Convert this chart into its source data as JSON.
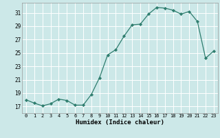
{
  "x": [
    0,
    1,
    2,
    3,
    4,
    5,
    6,
    7,
    8,
    9,
    10,
    11,
    12,
    13,
    14,
    15,
    16,
    17,
    18,
    19,
    20,
    21,
    22,
    23
  ],
  "y": [
    18.0,
    17.5,
    17.1,
    17.4,
    18.1,
    17.9,
    17.2,
    17.2,
    18.8,
    21.3,
    24.7,
    25.5,
    27.5,
    29.2,
    29.3,
    30.8,
    31.8,
    31.7,
    31.4,
    30.8,
    31.2,
    29.7,
    24.2,
    25.3
  ],
  "line_color": "#2e7d6e",
  "marker": "D",
  "marker_size": 2.2,
  "bg_color": "#cce8e8",
  "grid_color": "#ffffff",
  "xlabel": "Humidex (Indice chaleur)",
  "ylabel_ticks": [
    17,
    19,
    21,
    23,
    25,
    27,
    29,
    31
  ],
  "xtick_labels": [
    "0",
    "1",
    "2",
    "3",
    "4",
    "5",
    "6",
    "7",
    "8",
    "9",
    "10",
    "11",
    "12",
    "13",
    "14",
    "15",
    "16",
    "17",
    "18",
    "19",
    "20",
    "21",
    "22",
    "23"
  ],
  "ylim": [
    16.0,
    32.5
  ],
  "xlim": [
    -0.5,
    23.5
  ]
}
